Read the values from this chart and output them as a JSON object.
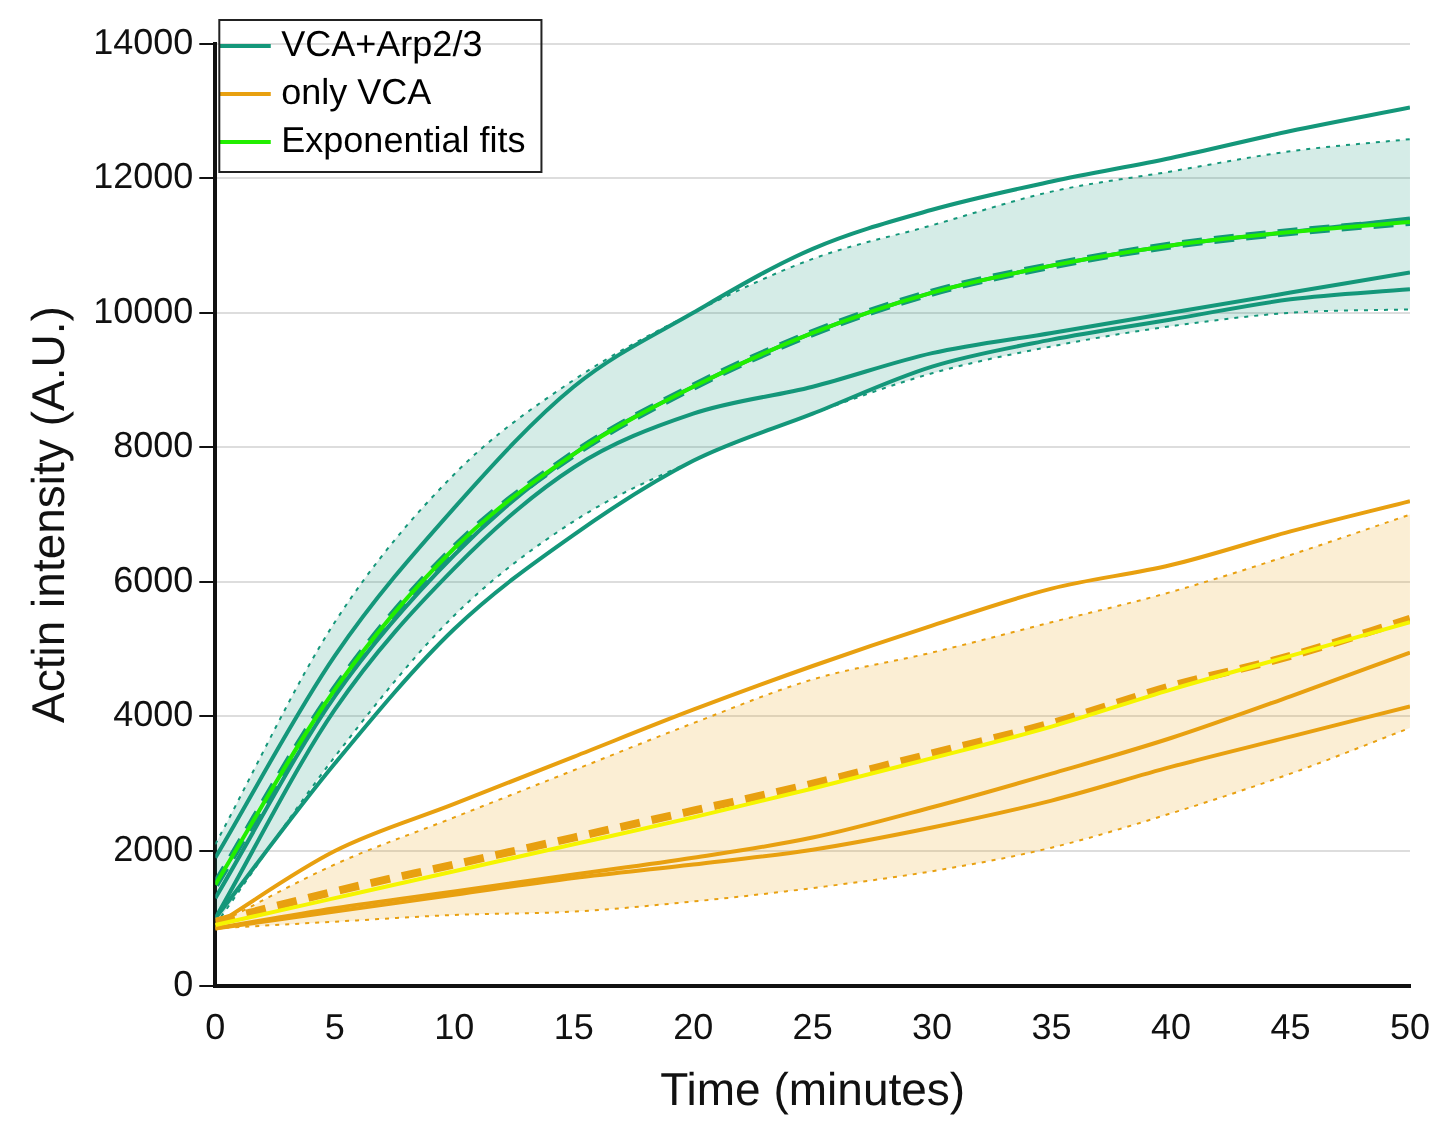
{
  "chart_data": {
    "type": "line",
    "xlabel": "Time (minutes)",
    "ylabel": "Actin intensity (A.U.)",
    "x": [
      0,
      5,
      10,
      15,
      20,
      25,
      30,
      35,
      40,
      45,
      50
    ],
    "xlim": [
      0,
      50
    ],
    "xticks": [
      0,
      5,
      10,
      15,
      20,
      25,
      30,
      35,
      40,
      45,
      50
    ],
    "ylim": [
      0,
      14000
    ],
    "yticks": [
      0,
      2000,
      4000,
      6000,
      8000,
      10000,
      12000,
      14000
    ],
    "grid": "y",
    "legend": "top left",
    "marker": "none",
    "series": [
      {
        "name": "VCA+Arp2/3",
        "color": "#14977a",
        "values": [
          1900,
          4900,
          7100,
          8900,
          10000,
          10950,
          11530,
          11950,
          12300,
          12700,
          13050
        ]
      },
      {
        "color": "#14977a",
        "values": [
          1300,
          4300,
          6400,
          7900,
          8900,
          9700,
          10300,
          10700,
          11000,
          11200,
          11400
        ]
      },
      {
        "color": "#14977a",
        "values": [
          1000,
          4100,
          6200,
          7700,
          8500,
          8900,
          9400,
          9700,
          10000,
          10300,
          10600
        ]
      },
      {
        "color": "#14977a",
        "values": [
          1000,
          3300,
          5300,
          6700,
          7800,
          8500,
          9200,
          9600,
          9900,
          10200,
          10350
        ]
      },
      {
        "color": "#14977a",
        "line_style": "dashed",
        "values": [
          1500,
          4400,
          6500,
          7900,
          8900,
          9700,
          10300,
          10700,
          11000,
          11200,
          11350
        ],
        "lower": [
          900,
          3400,
          5500,
          6900,
          7800,
          8500,
          9100,
          9500,
          9800,
          10000,
          10050
        ],
        "upper": [
          2100,
          5400,
          7600,
          9000,
          10000,
          10800,
          11300,
          11800,
          12100,
          12400,
          12580
        ]
      },
      {
        "color": "#14977a",
        "line_style": "dotted",
        "values": [
          900,
          3400,
          5500,
          6900,
          7800,
          8500,
          9100,
          9500,
          9800,
          10000,
          10050
        ]
      },
      {
        "color": "#14977a",
        "line_style": "dotted",
        "values": [
          2100,
          5400,
          7600,
          9000,
          10000,
          10800,
          11300,
          11800,
          12100,
          12400,
          12580
        ]
      },
      {
        "name": "only VCA",
        "color": "#e8a010",
        "values": [
          900,
          2000,
          2700,
          3400,
          4100,
          4750,
          5350,
          5900,
          6250,
          6750,
          7200
        ]
      },
      {
        "color": "#e8a010",
        "values": [
          850,
          1150,
          1400,
          1650,
          1900,
          2200,
          2650,
          3150,
          3680,
          4300,
          4950
        ]
      },
      {
        "color": "#e8a010",
        "values": [
          850,
          1100,
          1350,
          1600,
          1800,
          2020,
          2350,
          2750,
          3250,
          3700,
          4150
        ]
      },
      {
        "color": "#e8a010",
        "line_style": "dashed",
        "values": [
          950,
          1400,
          1800,
          2200,
          2600,
          3000,
          3450,
          3900,
          4450,
          4900,
          5450
        ],
        "lower": [
          850,
          950,
          1050,
          1100,
          1250,
          1450,
          1700,
          2050,
          2560,
          3150,
          3830
        ],
        "upper": [
          900,
          1800,
          2500,
          3200,
          3900,
          4550,
          4950,
          5400,
          5850,
          6400,
          7000
        ]
      },
      {
        "color": "#e8a010",
        "line_style": "dotted",
        "values": [
          850,
          950,
          1050,
          1100,
          1250,
          1450,
          1700,
          2050,
          2560,
          3150,
          3830
        ]
      },
      {
        "color": "#e8a010",
        "line_style": "dotted",
        "values": [
          900,
          1800,
          2500,
          3200,
          3900,
          4550,
          4950,
          5400,
          5850,
          6400,
          7000
        ]
      },
      {
        "name": "Exponential fits",
        "color": "#22ee00",
        "values": [
          1500,
          4400,
          6500,
          7900,
          8900,
          9700,
          10300,
          10700,
          11000,
          11200,
          11350
        ]
      },
      {
        "color": "#f5f500",
        "values": [
          900,
          1300,
          1700,
          2100,
          2500,
          2930,
          3380,
          3850,
          4400,
          4900,
          5400
        ]
      }
    ]
  }
}
